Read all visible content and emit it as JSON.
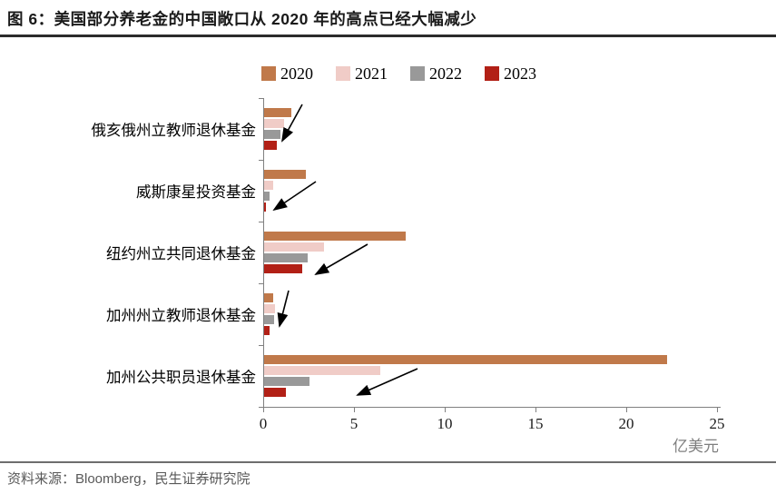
{
  "header": {
    "title": "图 6：美国部分养老金的中国敞口从 2020 年的高点已经大幅减少"
  },
  "chart_data": {
    "type": "bar",
    "orientation": "horizontal",
    "title": "美国部分养老金的中国敞口从 2020 年的高点已经大幅减少",
    "categories": [
      "俄亥俄州立教师退休基金",
      "威斯康星投资基金",
      "纽约州立共同退休基金",
      "加州州立教师退休基金",
      "加州公共职员退休基金"
    ],
    "series": [
      {
        "name": "2020",
        "color": "#C0794A",
        "values": [
          1.5,
          2.3,
          7.8,
          0.5,
          22.2
        ]
      },
      {
        "name": "2021",
        "color": "#F0CCC7",
        "values": [
          1.1,
          0.5,
          3.3,
          0.6,
          6.4
        ]
      },
      {
        "name": "2022",
        "color": "#999999",
        "values": [
          0.9,
          0.3,
          2.4,
          0.55,
          2.5
        ]
      },
      {
        "name": "2023",
        "color": "#B22016",
        "values": [
          0.7,
          0.1,
          2.1,
          0.3,
          1.2
        ]
      }
    ],
    "x_ticks": [
      0,
      5,
      10,
      15,
      20,
      25
    ],
    "xlim": [
      0,
      25
    ],
    "xlabel": "亿美元",
    "ylabel": "",
    "legend_position": "top",
    "grid": false,
    "annotation": "黑色箭头指向各基金逐年下降的柱组"
  },
  "footer": {
    "source": "资料来源：Bloomberg，民生证券研究院"
  }
}
